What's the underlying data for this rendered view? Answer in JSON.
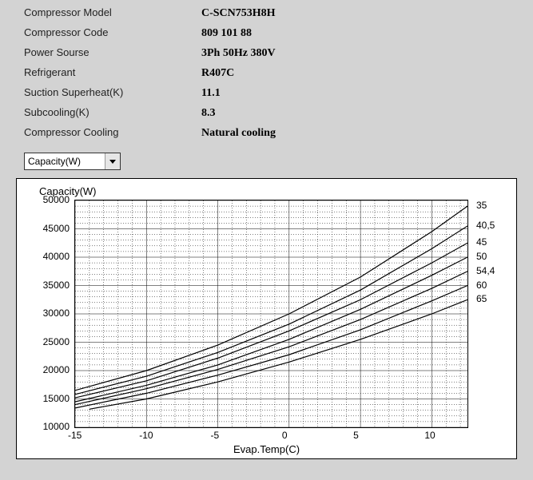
{
  "specs": [
    {
      "label": "Compressor Model",
      "value": "C-SCN753H8H"
    },
    {
      "label": "Compressor Code",
      "value": "809 101 88"
    },
    {
      "label": "Power Sourse",
      "value": "3Ph  50Hz  380V"
    },
    {
      "label": "Refrigerant",
      "value": "R407C"
    },
    {
      "label": "Suction Superheat(K)",
      "value": "11.1"
    },
    {
      "label": "Subcooling(K)",
      "value": "8.3"
    },
    {
      "label": "Compressor Cooling",
      "value": "Natural cooling"
    }
  ],
  "dropdown": {
    "selected": "Capacity(W)"
  },
  "chart": {
    "type": "line",
    "title": "Capacity(W)",
    "xlabel": "Evap.Temp(C)",
    "xlim": [
      -15,
      12.5
    ],
    "ylim": [
      10000,
      50000
    ],
    "xtick_major_step": 5,
    "xtick_minor_step": 1,
    "ytick_major_step": 5000,
    "ytick_minor_step": 1000,
    "background_color": "#ffffff",
    "grid_color": "#000000",
    "line_color": "#000000",
    "line_width": 1.2,
    "series": [
      {
        "label": "35",
        "x": [
          -15,
          -10,
          -5,
          0,
          5,
          10,
          12.5
        ],
        "y": [
          16500,
          20000,
          24500,
          30000,
          36500,
          44500,
          49000
        ]
      },
      {
        "label": "40,5",
        "x": [
          -15,
          -10,
          -5,
          0,
          5,
          10,
          12.5
        ],
        "y": [
          15800,
          19000,
          23200,
          28200,
          34200,
          41500,
          45500
        ]
      },
      {
        "label": "45",
        "x": [
          -15,
          -10,
          -5,
          0,
          5,
          10,
          12.5
        ],
        "y": [
          15200,
          18200,
          22200,
          27000,
          32500,
          39000,
          42500
        ]
      },
      {
        "label": "50",
        "x": [
          -15,
          -10,
          -5,
          0,
          5,
          10,
          12.5
        ],
        "y": [
          14500,
          17400,
          21000,
          25500,
          30800,
          36800,
          40000
        ]
      },
      {
        "label": "54,4",
        "x": [
          -15,
          -10,
          -5,
          0,
          5,
          10,
          12.5
        ],
        "y": [
          14000,
          16800,
          20200,
          24200,
          29000,
          34500,
          37500
        ]
      },
      {
        "label": "60",
        "x": [
          -15,
          -10,
          -5,
          0,
          5,
          10,
          12.5
        ],
        "y": [
          13400,
          16000,
          19200,
          22800,
          27200,
          32300,
          35000
        ]
      },
      {
        "label": "65",
        "x": [
          -14,
          -10,
          -5,
          0,
          5,
          10,
          12.5
        ],
        "y": [
          13200,
          15000,
          18000,
          21500,
          25500,
          30000,
          32500
        ]
      }
    ]
  }
}
